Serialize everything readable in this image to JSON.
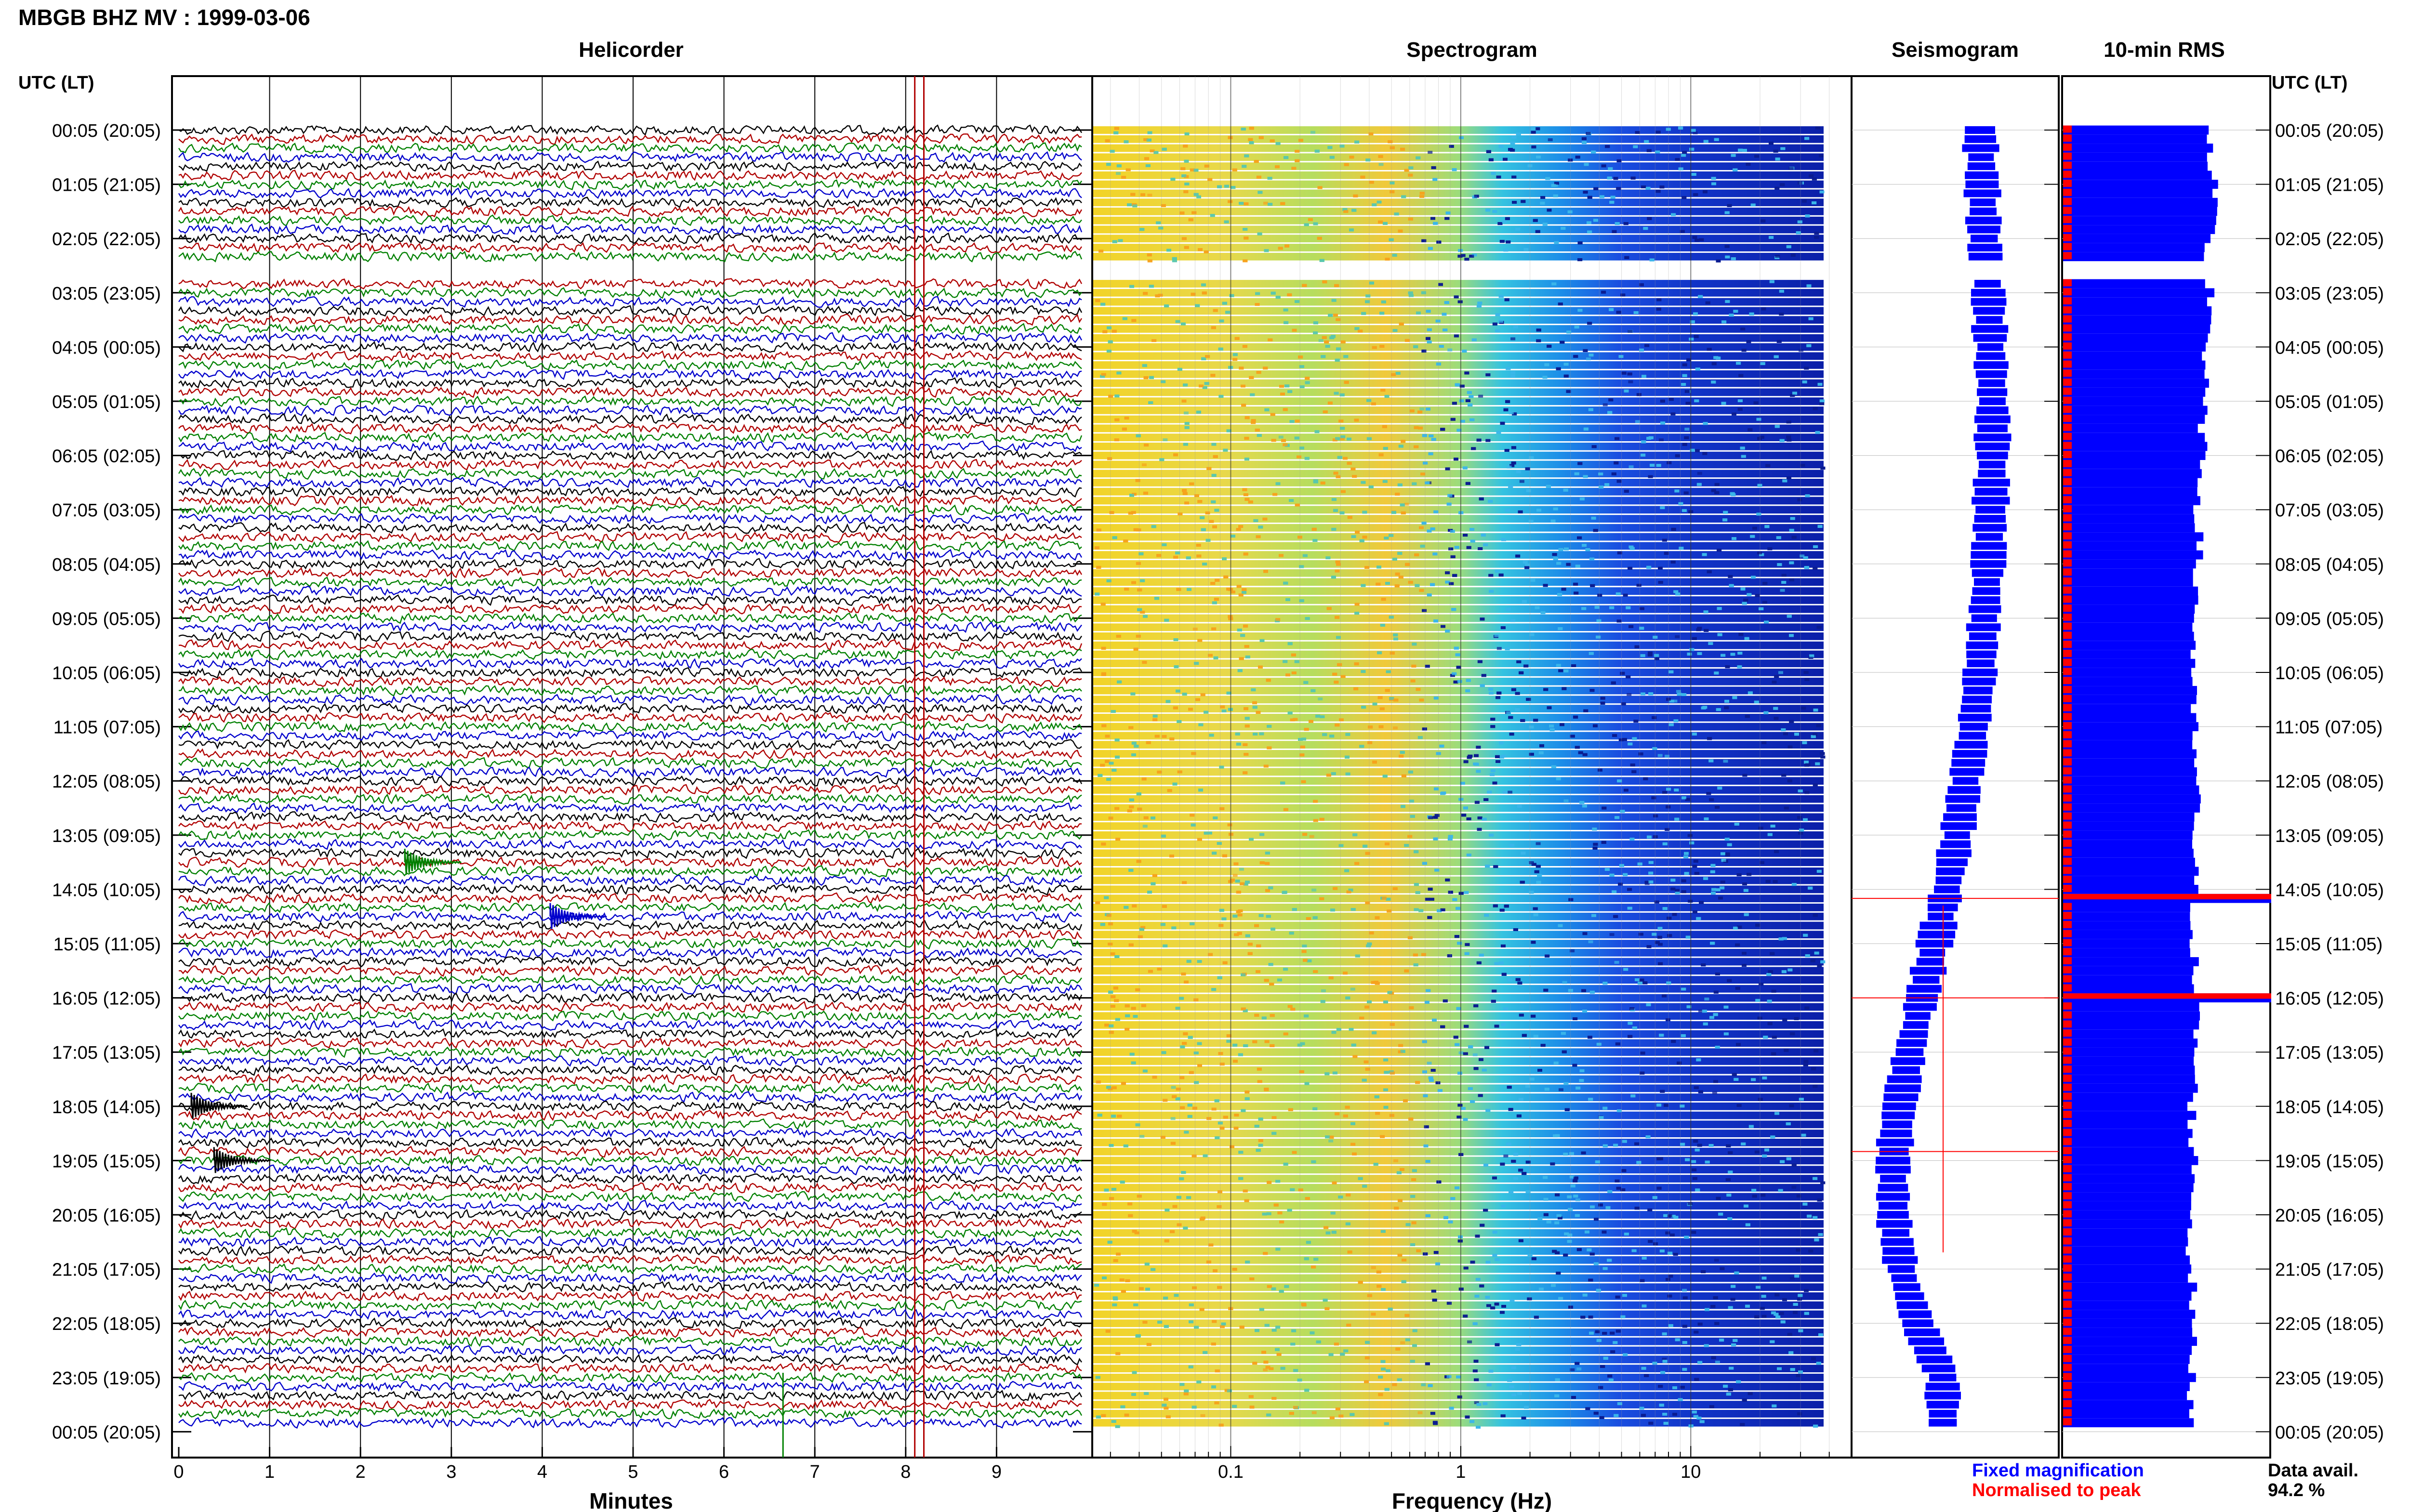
{
  "title": "MBGB BHZ MV : 1999-03-06",
  "panels": {
    "helicorder": "Helicorder",
    "spectrogram": "Spectrogram",
    "seismogram": "Seismogram",
    "rms": "10-min RMS"
  },
  "time_axis_label": "UTC (LT)",
  "time_labels": [
    "00:05 (20:05)",
    "01:05 (21:05)",
    "02:05 (22:05)",
    "03:05 (23:05)",
    "04:05 (00:05)",
    "05:05 (01:05)",
    "06:05 (02:05)",
    "07:05 (03:05)",
    "08:05 (04:05)",
    "09:05 (05:05)",
    "10:05 (06:05)",
    "11:05 (07:05)",
    "12:05 (08:05)",
    "13:05 (09:05)",
    "14:05 (10:05)",
    "15:05 (11:05)",
    "16:05 (12:05)",
    "17:05 (13:05)",
    "18:05 (14:05)",
    "19:05 (15:05)",
    "20:05 (16:05)",
    "21:05 (17:05)",
    "22:05 (18:05)",
    "23:05 (19:05)",
    "00:05 (20:05)"
  ],
  "legend": {
    "fixed": "Fixed magnification",
    "normalised": "Normalised to peak",
    "data_avail_label": "Data avail.",
    "data_avail_value": "94.2 %"
  },
  "colors": {
    "helicorder_traces": [
      "#000000",
      "#b00000",
      "#008000",
      "#0000cc"
    ],
    "fixed": "#0000ff",
    "normalised": "#ff0000"
  },
  "chart_data": [
    {
      "type": "line",
      "panel": "helicorder",
      "xlabel": "Minutes",
      "x_ticks": [
        "0",
        "1",
        "2",
        "3",
        "4",
        "5",
        "6",
        "7",
        "8",
        "9"
      ],
      "xlim": [
        0,
        10
      ],
      "rows": 144,
      "row_minutes": 10,
      "data_gap_rows": [
        15,
        16
      ],
      "markers_minutes": [
        6.65,
        8.1,
        8.2
      ]
    },
    {
      "type": "heatmap",
      "panel": "spectrogram",
      "xlabel": "Frequency (Hz)",
      "x_scale": "log",
      "xlim": [
        0.025,
        50
      ],
      "x_ticks": [
        "0.1",
        "1",
        "10"
      ],
      "rows": 144,
      "data_gap_rows": [
        15,
        16
      ]
    },
    {
      "type": "area",
      "panel": "seismogram",
      "series": [
        {
          "name": "Fixed magnification",
          "values": [
            0.62,
            0.63,
            0.64,
            0.66,
            0.67,
            0.68,
            0.68,
            0.67,
            0.66,
            0.64,
            0.62,
            0.59,
            0.55,
            0.51,
            0.46,
            0.4,
            0.34,
            0.28,
            0.23,
            0.2,
            0.2,
            0.24,
            0.32,
            0.44
          ]
        },
        {
          "name": "Normalised to peak",
          "spikes_rows": [
            85,
            96,
            113
          ]
        }
      ]
    },
    {
      "type": "bar",
      "panel": "rms",
      "fixed_rms": [
        0.7,
        0.72,
        0.69,
        0.71,
        0.68,
        0.67,
        0.66,
        0.65,
        0.64,
        0.63,
        0.62,
        0.63,
        0.64,
        0.63,
        0.63,
        0.63,
        0.64,
        0.63,
        0.62,
        0.63,
        0.61,
        0.62,
        0.62,
        0.62
      ],
      "peak_events_rows": [
        85,
        96
      ]
    }
  ]
}
